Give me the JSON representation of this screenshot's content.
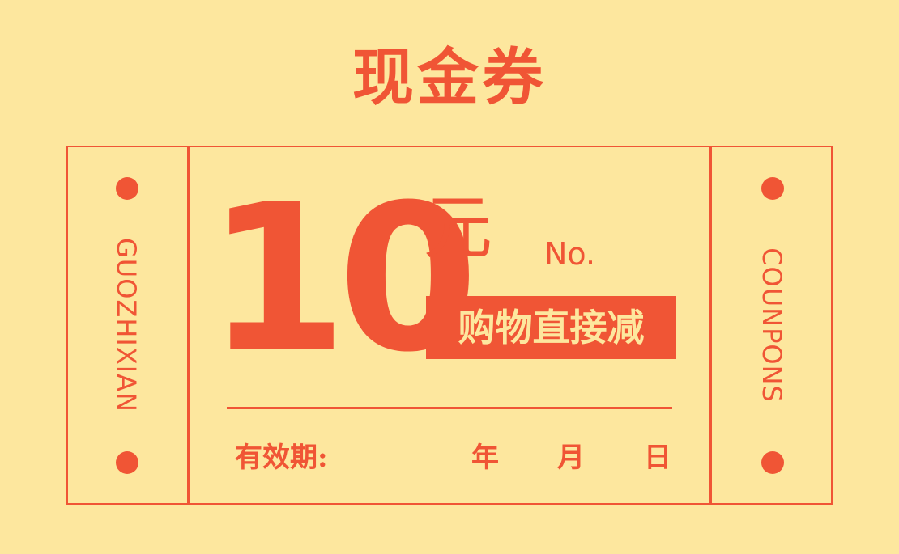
{
  "title": "现金券",
  "amount": "10",
  "currency": "元",
  "number_label": "No.",
  "badge": "购物直接减",
  "validity_label": "有效期:",
  "date_units": {
    "year": "年",
    "month": "月",
    "day": "日"
  },
  "left_stub_text": "GUOZHIXIAN",
  "right_stub_text": "COUNPONS",
  "colors": {
    "background": "#fde79e",
    "accent": "#f05535"
  }
}
